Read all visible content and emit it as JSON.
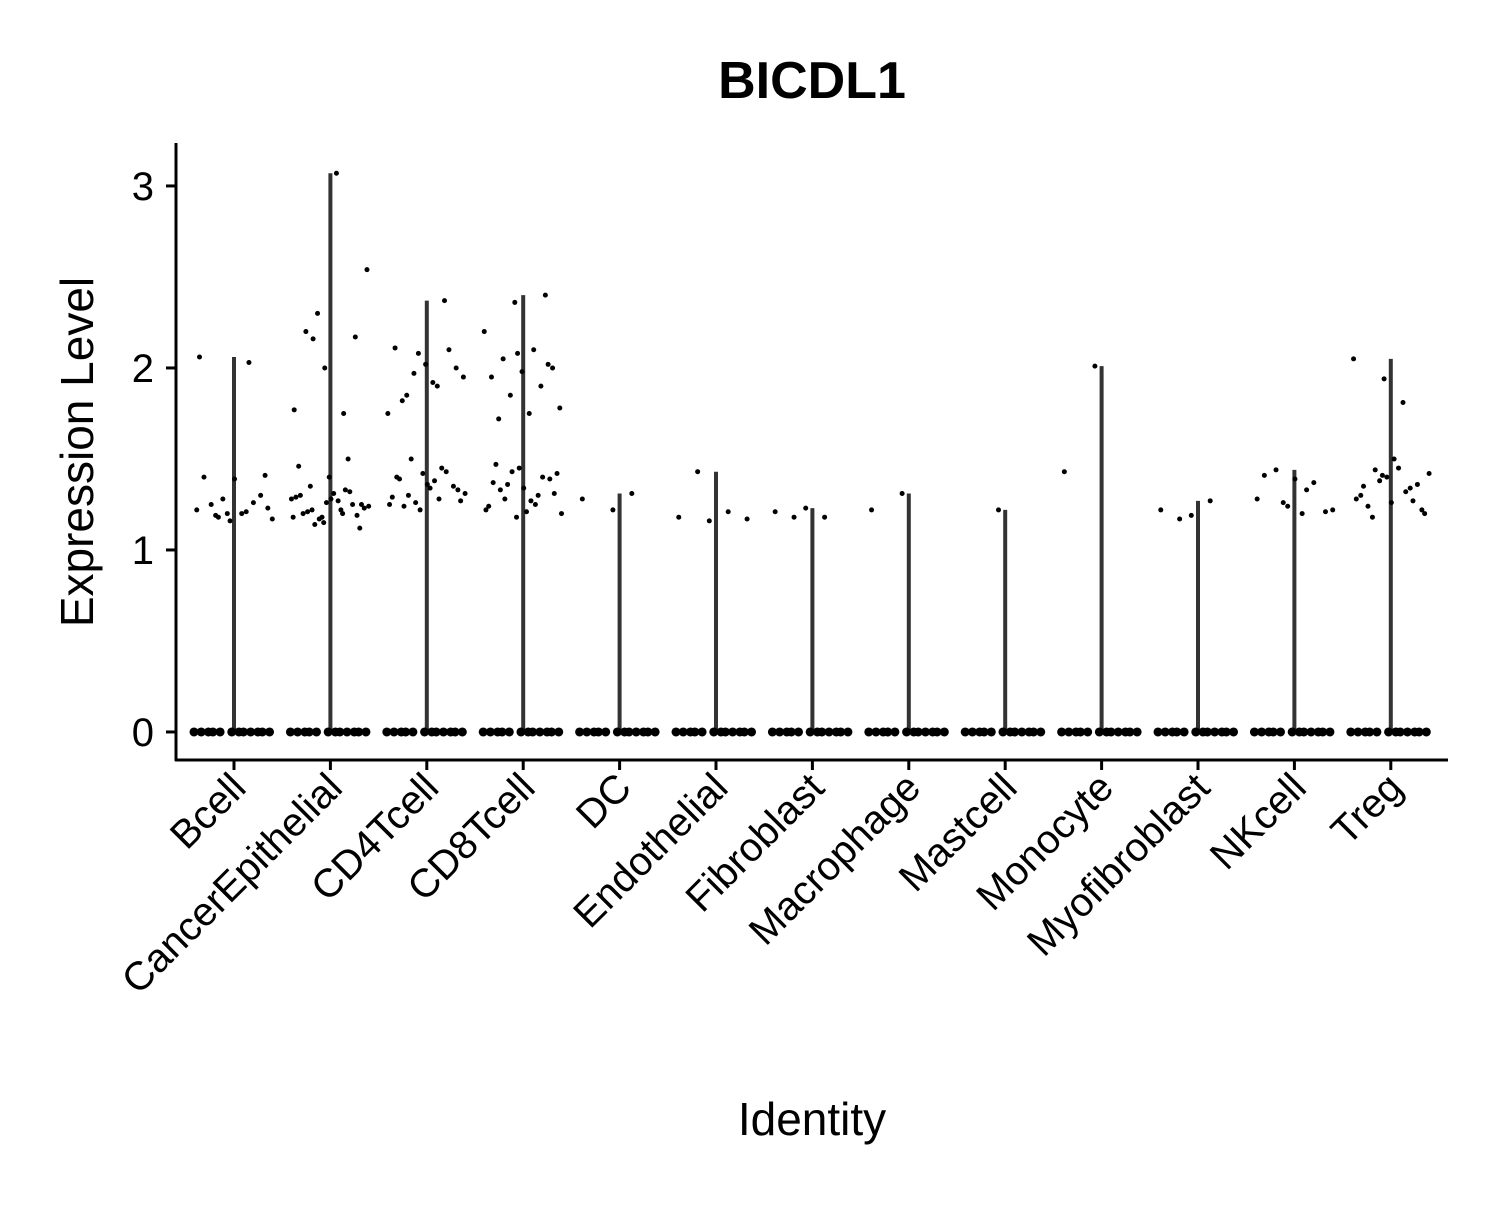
{
  "chart_data": {
    "type": "violin",
    "title": "BICDL1",
    "x_label": "Identity",
    "y_label": "Expression Level",
    "categories": [
      "Bcell",
      "CancerEpithelial",
      "CD4Tcell",
      "CD8Tcell",
      "DC",
      "Endothelial",
      "Fibroblast",
      "Macrophage",
      "Mastcell",
      "Monocyte",
      "Myofibroblast",
      "NKcell",
      "Treg"
    ],
    "points": [
      [
        0,
        0,
        0,
        0,
        0,
        0,
        0,
        0,
        0,
        0,
        0,
        0,
        1.2,
        1.22,
        1.21,
        1.19,
        1.41,
        1.39,
        1.4,
        1.26,
        1.28,
        1.17,
        1.2,
        1.25,
        1.3,
        1.16,
        2.06,
        2.03,
        1.18,
        1.23
      ],
      [
        0,
        0,
        0,
        0,
        0,
        0,
        0,
        0,
        0,
        0,
        0,
        0,
        1.15,
        1.18,
        1.2,
        1.22,
        1.25,
        1.28,
        1.3,
        1.32,
        1.17,
        1.24,
        1.27,
        1.21,
        1.19,
        1.26,
        1.29,
        1.33,
        1.14,
        1.23,
        1.31,
        1.2,
        1.25,
        1.18,
        1.28,
        1.22,
        1.35,
        1.12,
        1.4,
        1.46,
        1.5,
        2.3,
        2.54,
        3.07,
        2.2,
        2.17,
        2.0,
        1.77,
        1.75,
        2.16
      ],
      [
        0,
        0,
        0,
        0,
        0,
        0,
        0,
        0,
        0,
        0,
        0,
        0,
        1.22,
        1.25,
        1.28,
        1.3,
        1.33,
        1.36,
        1.4,
        1.43,
        1.26,
        1.31,
        1.38,
        1.24,
        1.35,
        1.42,
        1.29,
        1.45,
        1.5,
        1.27,
        1.34,
        1.39,
        2.1,
        2.08,
        1.75,
        1.9,
        1.85,
        2.0,
        2.02,
        2.11,
        2.37,
        1.97,
        1.95,
        1.92,
        1.82
      ],
      [
        0,
        0,
        0,
        0,
        0,
        0,
        0,
        0,
        0,
        0,
        0,
        0,
        1.18,
        1.22,
        1.25,
        1.28,
        1.31,
        1.34,
        1.37,
        1.4,
        1.43,
        1.2,
        1.27,
        1.33,
        1.39,
        1.45,
        1.24,
        1.3,
        1.36,
        1.42,
        1.21,
        1.47,
        2.4,
        2.36,
        2.2,
        2.1,
        2.05,
        2.0,
        1.98,
        1.95,
        1.9,
        1.85,
        1.78,
        1.75,
        1.72,
        2.02,
        2.08
      ],
      [
        0,
        0,
        0,
        0,
        0,
        0,
        0,
        0,
        0,
        0,
        0,
        0,
        1.22,
        1.28,
        1.31
      ],
      [
        0,
        0,
        0,
        0,
        0,
        0,
        0,
        0,
        0,
        0,
        0,
        0,
        1.16,
        1.18,
        1.21,
        1.43,
        1.17
      ],
      [
        0,
        0,
        0,
        0,
        0,
        0,
        0,
        0,
        0,
        0,
        0,
        0,
        1.23,
        1.21,
        1.18,
        1.18
      ],
      [
        0,
        0,
        0,
        0,
        0,
        0,
        0,
        0,
        0,
        0,
        0,
        0,
        1.31,
        1.22
      ],
      [
        0,
        0,
        0,
        0,
        0,
        0,
        0,
        0,
        0,
        0,
        0,
        0,
        1.22
      ],
      [
        0,
        0,
        0,
        0,
        0,
        0,
        0,
        0,
        0,
        0,
        0,
        0,
        2.01,
        1.43
      ],
      [
        0,
        0,
        0,
        0,
        0,
        0,
        0,
        0,
        0,
        0,
        0,
        0,
        1.19,
        1.22,
        1.27,
        1.17
      ],
      [
        0,
        0,
        0,
        0,
        0,
        0,
        0,
        0,
        0,
        0,
        0,
        0,
        1.24,
        1.28,
        1.33,
        1.44,
        1.21,
        1.39,
        1.41,
        1.37,
        1.26,
        1.22,
        1.2
      ],
      [
        0,
        0,
        0,
        0,
        0,
        0,
        0,
        0,
        0,
        0,
        0,
        0,
        1.94,
        2.05,
        1.81,
        1.18,
        1.22,
        1.26,
        1.3,
        1.34,
        1.38,
        1.42,
        1.45,
        1.24,
        1.36,
        1.4,
        1.28,
        1.32,
        1.44,
        1.2,
        1.5,
        1.35,
        1.27,
        1.41
      ]
    ],
    "color": "#000000",
    "violin_color": "#333333",
    "ylim": [
      -0.154,
      3.236
    ],
    "yticks": [
      0,
      1,
      2,
      3
    ]
  }
}
